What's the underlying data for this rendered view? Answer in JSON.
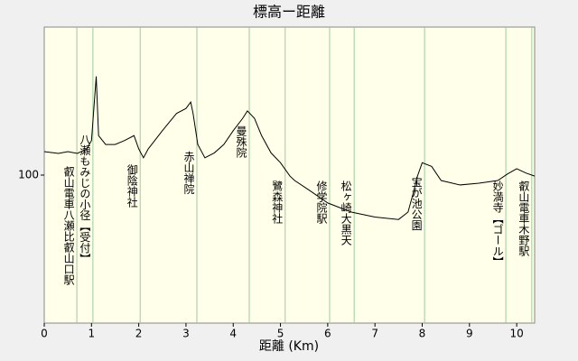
{
  "chart_data": {
    "type": "line",
    "title": "標高ー距離",
    "xlabel": "距離 (Km)",
    "xlim": [
      0,
      10.38
    ],
    "xticks": [
      0,
      1,
      2,
      3,
      4,
      5,
      6,
      7,
      8,
      9,
      10
    ],
    "ylim": [
      40,
      160
    ],
    "yticks": [
      100
    ],
    "series": [
      {
        "color": "#000000",
        "x": [
          0,
          0.3,
          0.5,
          0.7,
          0.9,
          1.0,
          1.05,
          1.1,
          1.15,
          1.3,
          1.5,
          1.7,
          1.9,
          2.0,
          2.1,
          2.2,
          2.5,
          2.8,
          3.0,
          3.1,
          3.15,
          3.25,
          3.4,
          3.6,
          3.8,
          4.0,
          4.2,
          4.3,
          4.45,
          4.6,
          4.8,
          5.0,
          5.2,
          5.3,
          5.6,
          6.0,
          6.5,
          7.0,
          7.5,
          7.7,
          7.8,
          7.9,
          8.0,
          8.2,
          8.4,
          8.8,
          9.2,
          9.6,
          9.8,
          10.0,
          10.2,
          10.38
        ],
        "values": [
          109.5,
          108.8,
          109.5,
          108.8,
          110.6,
          114,
          127,
          140,
          116,
          112.4,
          112.4,
          114,
          116,
          110.6,
          107,
          110.6,
          118,
          125,
          127,
          129.6,
          125,
          112.4,
          107,
          109,
          112.4,
          118,
          123,
          126,
          123,
          116,
          109,
          105,
          99.6,
          97.8,
          94,
          88.7,
          85,
          83,
          82,
          85,
          92,
          99.6,
          105,
          103.5,
          97.8,
          96,
          96.7,
          97.8,
          100.4,
          102.6,
          100.8,
          99.6
        ]
      }
    ],
    "landmarks": [
      {
        "x": 0.69,
        "label": "叡山電車八瀬比叡山口駅"
      },
      {
        "x": 1.03,
        "label": "八瀬もみじの小径【受付】"
      },
      {
        "x": 2.03,
        "label": "御陰神社"
      },
      {
        "x": 3.23,
        "label": "赤山禅院"
      },
      {
        "x": 4.34,
        "label": "曼殊院"
      },
      {
        "x": 5.1,
        "label": "鷺森神社"
      },
      {
        "x": 6.04,
        "label": "修学院駅"
      },
      {
        "x": 6.56,
        "label": "松ヶ崎大黒天"
      },
      {
        "x": 8.05,
        "label": "宝が池公園"
      },
      {
        "x": 9.77,
        "label": "妙満寺【ゴール】"
      },
      {
        "x": 10.32,
        "label": "叡山電車木野駅"
      }
    ]
  }
}
